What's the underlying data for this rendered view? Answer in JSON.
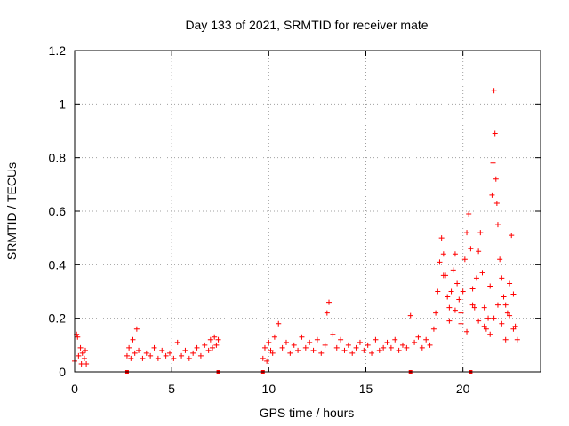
{
  "chart_data": {
    "type": "scatter",
    "title": "Day 133 of 2021, SRMTID for receiver mate",
    "xlabel": "GPS time / hours",
    "ylabel": "SRMTID / TECUs",
    "xlim": [
      0,
      24
    ],
    "ylim": [
      0,
      1.2
    ],
    "grid": true,
    "marker": "+",
    "xticks": [
      {
        "value": 0,
        "label": "0"
      },
      {
        "value": 5,
        "label": "5"
      },
      {
        "value": 10,
        "label": "10"
      },
      {
        "value": 15,
        "label": "15"
      },
      {
        "value": 20,
        "label": "20"
      }
    ],
    "yticks": [
      {
        "value": 0,
        "label": "0"
      },
      {
        "value": 0.2,
        "label": "0.2"
      },
      {
        "value": 0.4,
        "label": "0.4"
      },
      {
        "value": 0.6,
        "label": "0.6"
      },
      {
        "value": 0.8,
        "label": "0.8"
      },
      {
        "value": 1.0,
        "label": "1"
      },
      {
        "value": 1.2,
        "label": "1.2"
      }
    ],
    "series": [
      {
        "name": "SRMTID",
        "color": "#ff0000",
        "x": [
          0.0,
          0.1,
          0.15,
          0.2,
          0.3,
          0.35,
          0.4,
          0.5,
          0.55,
          0.6,
          2.7,
          2.8,
          2.9,
          3.0,
          3.1,
          3.2,
          3.3,
          3.5,
          3.7,
          3.9,
          4.1,
          4.3,
          4.5,
          4.7,
          4.9,
          5.1,
          5.3,
          5.5,
          5.7,
          5.9,
          6.1,
          6.3,
          6.5,
          6.7,
          6.9,
          7.0,
          7.1,
          7.2,
          7.3,
          7.4,
          9.7,
          9.8,
          9.9,
          10.0,
          10.1,
          10.2,
          10.3,
          10.5,
          10.7,
          10.9,
          11.1,
          11.3,
          11.5,
          11.7,
          11.9,
          12.1,
          12.3,
          12.5,
          12.7,
          12.9,
          13.0,
          13.1,
          13.3,
          13.5,
          13.7,
          13.9,
          14.1,
          14.3,
          14.5,
          14.7,
          14.9,
          15.1,
          15.3,
          15.5,
          15.7,
          15.9,
          16.1,
          16.3,
          16.5,
          16.7,
          16.9,
          17.1,
          17.3,
          17.5,
          17.7,
          17.9,
          18.1,
          18.3,
          18.5,
          18.6,
          18.7,
          18.8,
          18.9,
          19.0,
          19.1,
          19.2,
          19.3,
          19.4,
          19.5,
          19.6,
          19.7,
          19.8,
          19.9,
          20.0,
          20.1,
          20.2,
          20.3,
          20.4,
          20.5,
          20.6,
          20.7,
          20.8,
          20.9,
          21.0,
          21.1,
          21.2,
          21.3,
          21.4,
          21.5,
          21.55,
          21.6,
          21.65,
          21.7,
          21.75,
          21.8,
          21.9,
          22.0,
          22.1,
          22.2,
          22.3,
          22.4,
          22.5,
          22.6,
          22.7,
          22.8,
          19.0,
          19.3,
          19.6,
          19.9,
          20.2,
          20.5,
          20.8,
          21.1,
          21.4,
          21.6,
          21.8,
          22.0,
          22.2,
          22.4,
          22.6
        ],
        "y": [
          0.04,
          0.14,
          0.13,
          0.06,
          0.09,
          0.03,
          0.07,
          0.05,
          0.08,
          0.03,
          0.06,
          0.09,
          0.05,
          0.12,
          0.07,
          0.16,
          0.08,
          0.05,
          0.07,
          0.06,
          0.09,
          0.05,
          0.08,
          0.06,
          0.07,
          0.05,
          0.11,
          0.06,
          0.08,
          0.05,
          0.07,
          0.09,
          0.06,
          0.1,
          0.08,
          0.12,
          0.09,
          0.13,
          0.1,
          0.12,
          0.05,
          0.09,
          0.04,
          0.11,
          0.08,
          0.07,
          0.13,
          0.18,
          0.09,
          0.11,
          0.07,
          0.1,
          0.08,
          0.13,
          0.09,
          0.11,
          0.08,
          0.12,
          0.07,
          0.1,
          0.22,
          0.26,
          0.14,
          0.09,
          0.12,
          0.08,
          0.1,
          0.07,
          0.09,
          0.11,
          0.08,
          0.1,
          0.07,
          0.12,
          0.08,
          0.09,
          0.11,
          0.09,
          0.12,
          0.08,
          0.1,
          0.09,
          0.21,
          0.11,
          0.13,
          0.09,
          0.12,
          0.1,
          0.16,
          0.22,
          0.3,
          0.41,
          0.5,
          0.44,
          0.36,
          0.28,
          0.24,
          0.3,
          0.38,
          0.44,
          0.33,
          0.27,
          0.22,
          0.3,
          0.42,
          0.52,
          0.59,
          0.46,
          0.31,
          0.24,
          0.35,
          0.45,
          0.52,
          0.37,
          0.24,
          0.16,
          0.2,
          0.32,
          0.66,
          0.78,
          1.05,
          0.89,
          0.72,
          0.63,
          0.55,
          0.42,
          0.35,
          0.28,
          0.25,
          0.22,
          0.33,
          0.51,
          0.29,
          0.17,
          0.12,
          0.36,
          0.19,
          0.23,
          0.18,
          0.15,
          0.25,
          0.19,
          0.17,
          0.14,
          0.2,
          0.25,
          0.18,
          0.12,
          0.21,
          0.16
        ]
      }
    ],
    "x_markers": [
      2.7,
      7.4,
      9.7,
      17.3,
      20.4
    ]
  }
}
